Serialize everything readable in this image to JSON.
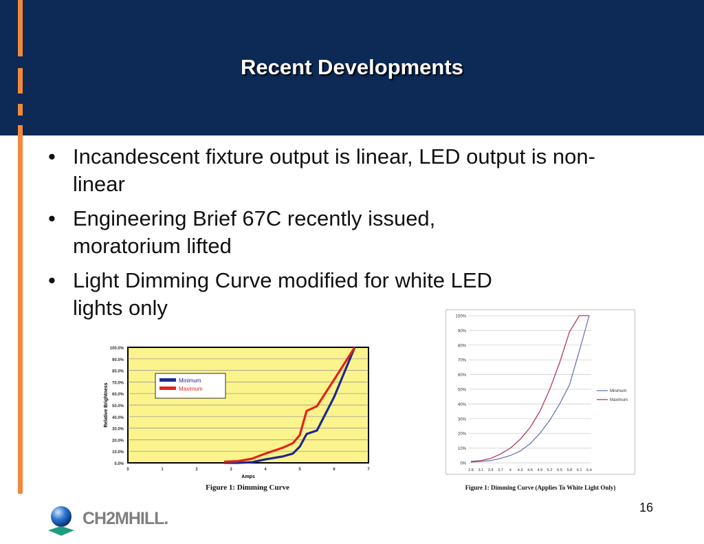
{
  "slide": {
    "title": "Recent Developments",
    "page_number": "16",
    "accent_color": "#f2893a",
    "header_color": "#0d2a56",
    "bullets": [
      "Incandescent fixture output is linear, LED output is non-linear",
      "Engineering Brief 67C recently issued, moratorium lifted",
      "Light Dimming Curve modified for white LED lights only"
    ],
    "bullet_symbol": "•",
    "logo": {
      "text": "CH2MHILL.",
      "icon": "globe-logo-icon"
    }
  },
  "chart_data": [
    {
      "type": "line",
      "caption": "Figure 1: Dimming Curve",
      "xlabel": "Amps",
      "ylabel": "Relative Brightness",
      "x_ticks": [
        "0",
        "1",
        "2",
        "3",
        "4",
        "5",
        "6",
        "7"
      ],
      "y_ticks": [
        "0.0%",
        "10.0%",
        "20.0%",
        "30.0%",
        "40.0%",
        "50.0%",
        "60.0%",
        "70.0%",
        "80.0%",
        "90.0%",
        "100.0%"
      ],
      "xlim": [
        0,
        7
      ],
      "ylim": [
        0,
        100
      ],
      "grid": true,
      "legend_position": "top-left",
      "plot_background": "#fbf38c",
      "series": [
        {
          "name": "Minimum",
          "color": "#1b2a8c",
          "x": [
            2.8,
            3.2,
            3.6,
            4.0,
            4.5,
            4.8,
            5.0,
            5.2,
            5.5,
            6.0,
            6.6
          ],
          "y": [
            0,
            0,
            0.5,
            3,
            5.5,
            8,
            14,
            25,
            28,
            57,
            100
          ]
        },
        {
          "name": "Maximum",
          "color": "#e0241c",
          "x": [
            2.8,
            3.2,
            3.6,
            4.0,
            4.5,
            4.8,
            5.0,
            5.2,
            5.5,
            6.0,
            6.6
          ],
          "y": [
            1,
            1.5,
            3.5,
            8,
            13,
            17,
            24,
            45,
            49,
            72,
            100
          ]
        }
      ]
    },
    {
      "type": "line",
      "caption": "Figure 1: Dimming Curve (Applies To White Light Only)",
      "categories": [
        "2.8",
        "3.1",
        "3.4",
        "3.7",
        "4",
        "4.3",
        "4.6",
        "4.9",
        "5.2",
        "5.5",
        "5.8",
        "6.1",
        "6.4"
      ],
      "y_ticks": [
        "0%",
        "10%",
        "20%",
        "30%",
        "40%",
        "50%",
        "60%",
        "70%",
        "80%",
        "90%",
        "100%"
      ],
      "ylim": [
        0,
        100
      ],
      "grid": true,
      "legend_position": "right",
      "series": [
        {
          "name": "Minimum",
          "color": "#6c75b7",
          "values": [
            0.5,
            1,
            1.5,
            3,
            5,
            8,
            13,
            20,
            29,
            40,
            53,
            76,
            100
          ]
        },
        {
          "name": "Maximum",
          "color": "#b03a5a",
          "values": [
            1,
            1.5,
            3,
            6,
            10,
            16,
            24,
            35,
            50,
            68,
            89,
            100,
            100
          ]
        }
      ]
    }
  ]
}
